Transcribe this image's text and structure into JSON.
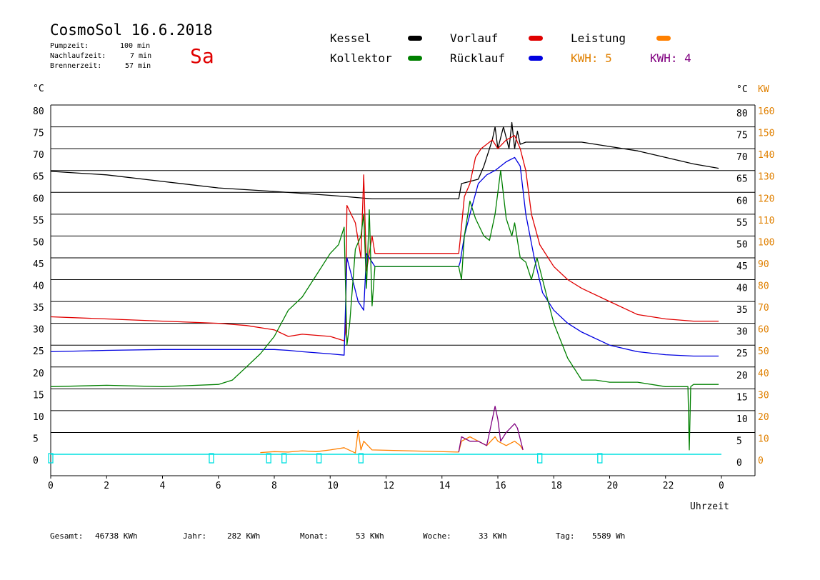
{
  "header": {
    "title": "CosmoSol 16.6.2018",
    "day": "Sa",
    "stats": [
      {
        "label": "Pumpzeit:",
        "value": "100 min"
      },
      {
        "label": "Nachlaufzeit:",
        "value": "7 min"
      },
      {
        "label": "Brennerzeit:",
        "value": "57 min"
      }
    ]
  },
  "legend": {
    "kessel": {
      "label": "Kessel",
      "color": "#000000"
    },
    "kollektor": {
      "label": "Kollektor",
      "color": "#008000"
    },
    "vorlauf": {
      "label": "Vorlauf",
      "color": "#e00000"
    },
    "ruecklauf": {
      "label": "Rücklauf",
      "color": "#0000e0"
    },
    "leistung": {
      "label": "Leistung",
      "color": "#ff8000"
    },
    "kwh1": {
      "label": "KWH: 5",
      "color": "#e08000"
    },
    "kwh2": {
      "label": "KWH: 4",
      "color": "#800080"
    }
  },
  "axes": {
    "left_unit": "°C",
    "right_unit": "°C",
    "right_unit2": "KW",
    "xlabel": "Uhrzeit"
  },
  "footer": [
    {
      "label": "Gesamt:",
      "value": "46738 KWh"
    },
    {
      "label": "Jahr:",
      "value": "282 KWh"
    },
    {
      "label": "Monat:",
      "value": "53 KWh"
    },
    {
      "label": "Woche:",
      "value": "33 KWh"
    },
    {
      "label": "Tag:",
      "value": "5589 Wh"
    }
  ],
  "chart_data": {
    "type": "line",
    "xlim": [
      0,
      24
    ],
    "ylim": [
      0,
      80
    ],
    "y2lim": [
      0,
      160
    ],
    "x_ticks": [
      "0",
      "2",
      "4",
      "6",
      "8",
      "10",
      "12",
      "14",
      "16",
      "18",
      "20",
      "22",
      "0"
    ],
    "y_ticks": [
      "0",
      "5",
      "10",
      "15",
      "20",
      "25",
      "30",
      "35",
      "40",
      "45",
      "50",
      "55",
      "60",
      "65",
      "70",
      "75",
      "80"
    ],
    "y2_ticks": [
      "0",
      "10",
      "20",
      "30",
      "40",
      "50",
      "60",
      "70",
      "80",
      "90",
      "100",
      "110",
      "120",
      "130",
      "140",
      "150",
      "160"
    ],
    "grid": true,
    "series": [
      {
        "key": "kessel",
        "name": "Kessel",
        "color": "#000000",
        "x": [
          0,
          2,
          4,
          6,
          8,
          10,
          10.6,
          11.5,
          12,
          14.6,
          14.7,
          15,
          15.3,
          15.5,
          15.7,
          15.8,
          15.9,
          16,
          16.2,
          16.4,
          16.5,
          16.6,
          16.7,
          16.8,
          17,
          18,
          19,
          20,
          21,
          22,
          23,
          23.9
        ],
        "y": [
          64.8,
          64,
          62.5,
          61,
          60.2,
          59.3,
          59,
          58.5,
          58.5,
          58.5,
          62,
          62.5,
          63,
          66,
          70,
          72,
          75,
          70,
          75,
          70,
          76,
          70,
          74,
          71,
          71.5,
          71.5,
          71.5,
          70.5,
          69.5,
          68,
          66.5,
          65.5
        ]
      },
      {
        "key": "vorlauf",
        "name": "Vorlauf",
        "color": "#e00000",
        "x": [
          0,
          2,
          4,
          6,
          7,
          8,
          8.5,
          9,
          10,
          10.5,
          10.55,
          10.6,
          10.9,
          11.1,
          11.2,
          11.3,
          11.5,
          11.6,
          12,
          14.6,
          14.65,
          14.8,
          15,
          15.2,
          15.4,
          15.6,
          15.8,
          16,
          16.3,
          16.6,
          16.8,
          17,
          17.2,
          17.5,
          18,
          18.5,
          19,
          20,
          21,
          22,
          23,
          23.9
        ],
        "y": [
          31.5,
          31,
          30.5,
          30,
          29.5,
          28.5,
          27,
          27.5,
          27,
          26,
          28,
          57,
          53,
          45,
          64,
          42,
          50,
          46,
          46,
          46,
          49,
          59,
          62,
          68,
          70,
          71,
          72,
          70,
          72,
          73,
          70,
          65,
          55,
          48,
          43,
          40,
          38,
          35,
          32,
          31,
          30.5,
          30.5
        ]
      },
      {
        "key": "ruecklauf",
        "name": "Rücklauf",
        "color": "#0000e0",
        "x": [
          0,
          2,
          4,
          6,
          7,
          8,
          8.5,
          9,
          10,
          10.5,
          10.6,
          10.8,
          11,
          11.2,
          11.3,
          11.5,
          11.6,
          12,
          14.6,
          14.65,
          14.8,
          15,
          15.3,
          15.6,
          15.9,
          16.1,
          16.3,
          16.6,
          16.8,
          17,
          17.3,
          17.6,
          18,
          18.5,
          19,
          20,
          21,
          22,
          23,
          23.9
        ],
        "y": [
          23.5,
          23.8,
          24,
          24,
          24,
          24,
          23.8,
          23.5,
          23,
          22.7,
          45,
          40,
          35,
          33,
          46,
          44,
          43,
          43,
          43,
          44,
          50,
          55,
          62,
          64,
          65,
          66,
          67,
          68,
          66,
          55,
          45,
          37,
          33,
          30,
          28,
          25,
          23.5,
          22.8,
          22.5,
          22.5
        ]
      },
      {
        "key": "kollektor",
        "name": "Kollektor",
        "color": "#008000",
        "x": [
          0,
          2,
          4,
          6,
          6.5,
          7,
          7.5,
          8,
          8.5,
          9,
          9.5,
          10,
          10.3,
          10.5,
          10.6,
          10.7,
          10.9,
          11.1,
          11.2,
          11.3,
          11.4,
          11.5,
          11.6,
          11.7,
          12,
          14.6,
          14.7,
          14.8,
          15,
          15.2,
          15.5,
          15.7,
          15.9,
          16.1,
          16.3,
          16.5,
          16.6,
          16.8,
          17,
          17.2,
          17.4,
          17.6,
          17.8,
          18,
          18.5,
          19,
          19.5,
          20,
          21,
          22,
          22.8,
          22.85,
          22.9,
          23,
          23.9
        ],
        "y": [
          15.5,
          15.8,
          15.5,
          16,
          17,
          20,
          23,
          27,
          33,
          36,
          41,
          46,
          48,
          52,
          25,
          30,
          47,
          50,
          55,
          38,
          56,
          34,
          43,
          43,
          43,
          43,
          40,
          50,
          58,
          54,
          50,
          49,
          55,
          65,
          54,
          50,
          53,
          45,
          44,
          40,
          45,
          40,
          35,
          30,
          22,
          17,
          17,
          16.5,
          16.5,
          15.5,
          15.5,
          1,
          15.5,
          16,
          16
        ]
      },
      {
        "key": "leistung",
        "name": "Leistung",
        "color": "#ff8000",
        "x": [
          7.5,
          8,
          8.5,
          9,
          9.5,
          10,
          10.5,
          10.9,
          11.0,
          11.1,
          11.2,
          11.5,
          14.6,
          14.7,
          15,
          15.3,
          15.6,
          15.9,
          16,
          16.3,
          16.6,
          16.8,
          16.9
        ],
        "y": [
          0.4,
          0.6,
          0.5,
          0.8,
          0.6,
          1,
          1.5,
          0.3,
          5.5,
          1,
          3,
          1,
          0.5,
          3,
          4,
          3,
          2,
          4,
          3,
          2,
          3,
          2,
          1
        ]
      },
      {
        "key": "kwh2",
        "name": "KWH: 4",
        "color": "#800080",
        "x": [
          14.6,
          14.7,
          15,
          15.3,
          15.6,
          15.9,
          16,
          16.1,
          16.3,
          16.6,
          16.7,
          16.9
        ],
        "y": [
          0.5,
          4,
          3,
          3,
          2,
          11,
          8,
          3,
          5,
          7,
          6,
          1
        ]
      }
    ],
    "pump_markers": [
      0,
      5.75,
      7.8,
      8.35,
      9.6,
      11.1,
      17.5,
      19.65
    ]
  }
}
